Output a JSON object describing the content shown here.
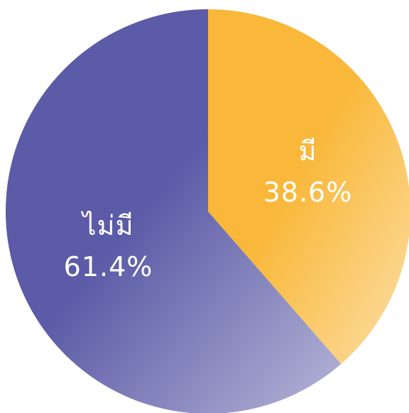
{
  "chart_data": {
    "type": "pie",
    "categories": [
      "มี",
      "ไม่มี"
    ],
    "values": [
      38.6,
      61.4
    ],
    "value_labels": [
      "38.6%",
      "61.4%"
    ],
    "colors": [
      "#f9b83a",
      "#5b5ba7"
    ],
    "start_angle": 0,
    "direction": "clockwise"
  }
}
